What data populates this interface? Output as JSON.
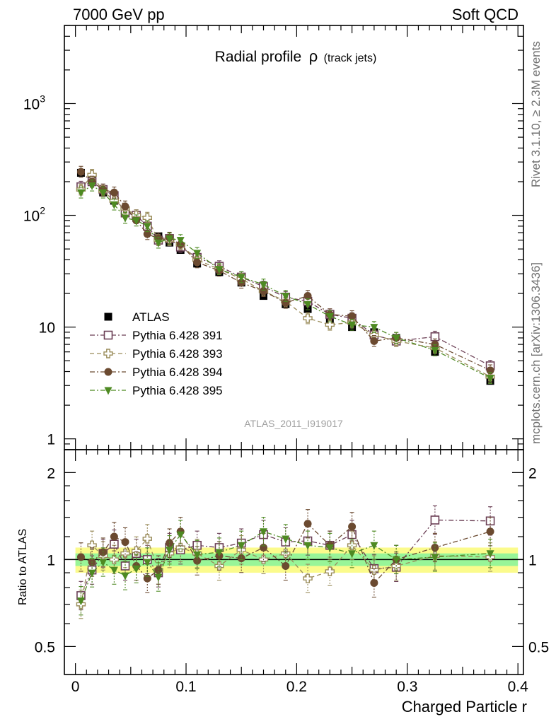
{
  "header": {
    "left": "7000 GeV pp",
    "right": "Soft QCD"
  },
  "side_labels": {
    "events": "Rivet 3.1.10, ≥ 2.3M events",
    "source": "mcplots.cern.ch [arXiv:1306.3436]"
  },
  "analysis_id": "ATLAS_2011_I919017",
  "chart_data": [
    {
      "type": "scatter",
      "title": "Radial profile",
      "title_symbol": "ρ",
      "title_suffix": "(track jets)",
      "yscale": "log",
      "ylim": [
        0.8,
        5000
      ],
      "xlim": [
        -0.01,
        0.405
      ],
      "ytick_labels": [
        {
          "value": 1,
          "label": "1"
        },
        {
          "value": 10,
          "label": "10"
        },
        {
          "value": 100,
          "label": "10",
          "exp": "2"
        },
        {
          "value": 1000,
          "label": "10",
          "exp": "3"
        }
      ],
      "legend_position": "bottom-left",
      "x": [
        0.005,
        0.015,
        0.025,
        0.035,
        0.045,
        0.055,
        0.065,
        0.075,
        0.085,
        0.095,
        0.11,
        0.13,
        0.15,
        0.17,
        0.19,
        0.21,
        0.23,
        0.25,
        0.27,
        0.29,
        0.325,
        0.375
      ],
      "series": [
        {
          "name": "ATLAS",
          "color": "#000000",
          "marker": "square-filled",
          "line": "none",
          "values": [
            240,
            205,
            160,
            135,
            110,
            95,
            80,
            65,
            57,
            49,
            37,
            31,
            25,
            19,
            16,
            14.5,
            11.5,
            10,
            9,
            8,
            6,
            3.3
          ]
        },
        {
          "name": "Pythia 6.428 391",
          "color": "#6b3f55",
          "marker": "square-open",
          "line": "dash-dot",
          "values": [
            180,
            200,
            170,
            150,
            105,
            100,
            80,
            60,
            62,
            52,
            42,
            35,
            28,
            23,
            18.5,
            17,
            13,
            12,
            8.5,
            7.5,
            8.2,
            4.5
          ]
        },
        {
          "name": "Pythia 6.428 393",
          "color": "#9a8c5a",
          "marker": "cross-open",
          "line": "dash",
          "values": [
            170,
            230,
            165,
            135,
            115,
            100,
            95,
            60,
            60,
            55,
            40,
            33,
            27,
            21,
            17,
            12,
            10.5,
            11,
            8.5,
            7.5,
            6.5,
            3.6
          ]
        },
        {
          "name": "Pythia 6.428 394",
          "color": "#6b4a30",
          "marker": "circle-filled",
          "line": "dash-dot",
          "values": [
            245,
            200,
            170,
            160,
            120,
            90,
            68,
            62,
            63,
            55,
            38,
            32,
            25,
            21,
            16.5,
            19,
            13,
            12.5,
            7.5,
            8,
            7,
            4.1
          ]
        },
        {
          "name": "Pythia 6.428 395",
          "color": "#4e8a22",
          "marker": "triangle-down",
          "line": "dash-dot",
          "values": [
            160,
            185,
            160,
            125,
            95,
            90,
            80,
            57,
            62,
            60,
            46,
            33,
            28,
            24,
            19,
            16,
            12.5,
            10.5,
            10,
            8,
            6.2,
            3.5
          ]
        }
      ]
    },
    {
      "type": "scatter",
      "xlabel": "Charged Particle r",
      "ylabel": "Ratio to ATLAS",
      "yscale": "log",
      "ylim": [
        0.4,
        2.4
      ],
      "xlim": [
        -0.01,
        0.405
      ],
      "ytick_labels": [
        {
          "value": 0.5,
          "label": "0.5"
        },
        {
          "value": 1,
          "label": "1"
        },
        {
          "value": 2,
          "label": "2"
        }
      ],
      "xtick_labels": [
        {
          "value": 0,
          "label": "0"
        },
        {
          "value": 0.1,
          "label": "0.1"
        },
        {
          "value": 0.2,
          "label": "0.2"
        },
        {
          "value": 0.3,
          "label": "0.3"
        },
        {
          "value": 0.4,
          "label": "0.4"
        }
      ],
      "band_colors": {
        "inner": "#98f598",
        "outer": "#fbfb8c"
      },
      "band_inner": 0.05,
      "band_outer": 0.1,
      "x": [
        0.005,
        0.015,
        0.025,
        0.035,
        0.045,
        0.055,
        0.065,
        0.075,
        0.085,
        0.095,
        0.11,
        0.13,
        0.15,
        0.17,
        0.19,
        0.21,
        0.23,
        0.25,
        0.27,
        0.29,
        0.325,
        0.375
      ],
      "series": [
        {
          "name": "Pythia 6.428 391",
          "color": "#6b3f55",
          "marker": "square-open",
          "line": "dash-dot",
          "values": [
            0.75,
            0.92,
            1.05,
            1.13,
            0.95,
            1.05,
            1.0,
            0.9,
            1.1,
            1.08,
            1.12,
            1.1,
            1.14,
            1.22,
            1.15,
            1.16,
            1.12,
            1.22,
            0.93,
            0.94,
            1.37,
            1.36
          ]
        },
        {
          "name": "Pythia 6.428 393",
          "color": "#9a8c5a",
          "marker": "cross-open",
          "line": "dash",
          "values": [
            0.7,
            1.12,
            1.03,
            1.0,
            1.05,
            1.07,
            1.18,
            0.92,
            1.05,
            1.1,
            1.05,
            0.95,
            1.08,
            1.0,
            1.05,
            0.86,
            0.91,
            1.12,
            0.92,
            0.95,
            1.03,
            1.02
          ]
        },
        {
          "name": "Pythia 6.428 394",
          "color": "#6b4a30",
          "marker": "circle-filled",
          "line": "dash-dot",
          "values": [
            1.02,
            0.98,
            1.06,
            1.2,
            1.15,
            0.95,
            0.86,
            0.92,
            1.14,
            1.25,
            0.99,
            1.03,
            1.01,
            1.1,
            0.95,
            1.33,
            1.12,
            1.3,
            0.83,
            1.0,
            1.1,
            1.25
          ]
        },
        {
          "name": "Pythia 6.428 395",
          "color": "#4e8a22",
          "marker": "triangle-down",
          "line": "dash-dot",
          "values": [
            0.72,
            0.9,
            0.98,
            0.92,
            0.88,
            0.93,
            0.98,
            0.87,
            1.08,
            1.22,
            1.04,
            1.06,
            1.12,
            1.25,
            1.18,
            1.12,
            1.1,
            1.05,
            1.12,
            1.0,
            1.02,
            1.05
          ]
        }
      ]
    }
  ]
}
